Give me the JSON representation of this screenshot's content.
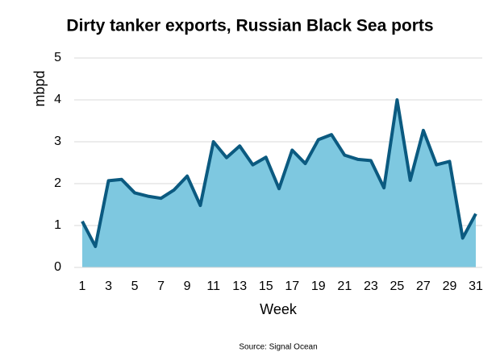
{
  "chart_data": {
    "type": "area",
    "title": "Dirty tanker exports, Russian Black Sea ports",
    "xlabel": "Week",
    "ylabel": "mbpd",
    "source": "Source: Signal Ocean",
    "x": [
      1,
      2,
      3,
      4,
      5,
      6,
      7,
      8,
      9,
      10,
      11,
      12,
      13,
      14,
      15,
      16,
      17,
      18,
      19,
      20,
      21,
      22,
      23,
      24,
      25,
      26,
      27,
      28,
      29,
      30,
      31
    ],
    "series": [
      {
        "name": "Dirty tanker exports",
        "color": "#0b5a80",
        "fill": "#7ec8e0",
        "values": [
          1.1,
          0.5,
          2.07,
          2.1,
          1.78,
          1.7,
          1.65,
          1.85,
          2.18,
          1.48,
          3.0,
          2.62,
          2.9,
          2.45,
          2.63,
          1.88,
          2.8,
          2.48,
          3.05,
          3.17,
          2.68,
          2.58,
          2.55,
          1.9,
          4.0,
          2.08,
          3.27,
          2.45,
          2.53,
          0.7,
          1.28
        ]
      }
    ],
    "xlim": [
      1,
      31
    ],
    "xticks": [
      1,
      3,
      5,
      7,
      9,
      11,
      13,
      15,
      17,
      19,
      21,
      23,
      25,
      27,
      29,
      31
    ],
    "ylim": [
      0,
      5
    ],
    "yticks": [
      0,
      1,
      2,
      3,
      4,
      5
    ],
    "grid": true
  }
}
